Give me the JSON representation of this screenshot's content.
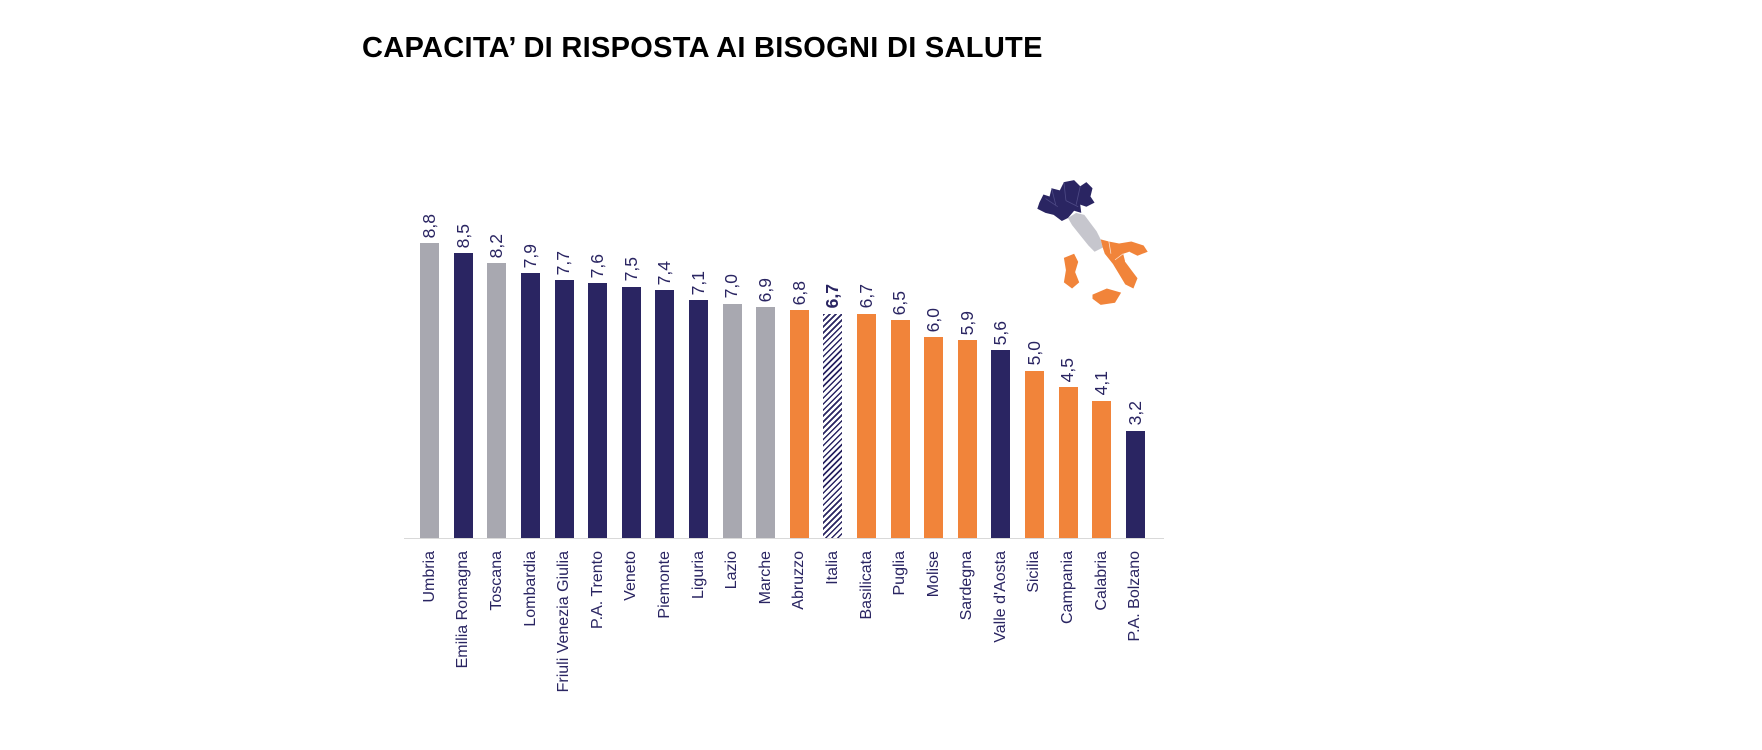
{
  "header": {
    "title": "CAPACITA’ DI RISPOSTA AI BISOGNI DI SALUTE"
  },
  "colors": {
    "navy": "#2A2562",
    "gray": "#A8A8B0",
    "orange": "#F1843A",
    "axis_line": "#D9D9D9",
    "label_text": "#2A2562",
    "title_text": "#000000"
  },
  "chart_data": {
    "type": "bar",
    "title": "CAPACITA’ DI RISPOSTA AI BISOGNI DI SALUTE",
    "xlabel": "",
    "ylabel": "",
    "ylim": [
      0,
      9
    ],
    "grid": false,
    "legend": "none",
    "decimal_separator": ",",
    "categories": [
      "Umbria",
      "Emilia Romagna",
      "Toscana",
      "Lombardia",
      "Friuli Venezia Giulia",
      "P.A. Trento",
      "Veneto",
      "Piemonte",
      "Liguria",
      "Lazio",
      "Marche",
      "Abruzzo",
      "Italia",
      "Basilicata",
      "Puglia",
      "Molise",
      "Sardegna",
      "Valle d'Aosta",
      "Sicilia",
      "Campania",
      "Calabria",
      "P.A. Bolzano"
    ],
    "values": [
      8.8,
      8.5,
      8.2,
      7.9,
      7.7,
      7.6,
      7.5,
      7.4,
      7.1,
      7.0,
      6.9,
      6.8,
      6.7,
      6.7,
      6.5,
      6.0,
      5.9,
      5.6,
      5.0,
      4.5,
      4.1,
      3.2
    ],
    "value_labels": [
      "8,8",
      "8,5",
      "8,2",
      "7,9",
      "7,7",
      "7,6",
      "7,5",
      "7,4",
      "7,1",
      "7,0",
      "6,9",
      "6,8",
      "6,7",
      "6,7",
      "6,5",
      "6,0",
      "5,9",
      "5,6",
      "5,0",
      "4,5",
      "4,1",
      "3,2"
    ],
    "bar_styles": [
      "gray",
      "navy",
      "gray",
      "navy",
      "navy",
      "navy",
      "navy",
      "navy",
      "navy",
      "gray",
      "gray",
      "orange",
      "hatched",
      "orange",
      "orange",
      "orange",
      "orange",
      "navy",
      "orange",
      "orange",
      "orange",
      "navy"
    ],
    "emphasized_category": "Italia",
    "style_legend": {
      "navy": "regioni nord (blu)",
      "gray": "regioni centro (grigio)",
      "orange": "regioni sud (arancio)",
      "hatched": "Italia (tratteggiato)"
    }
  },
  "map": {
    "name": "italy-regions-map",
    "north_color": "#2A2562",
    "center_color": "#C6C6CD",
    "south_color": "#F1843A",
    "border_color": "#55518C",
    "south_border_color": "#FFFFFF"
  }
}
